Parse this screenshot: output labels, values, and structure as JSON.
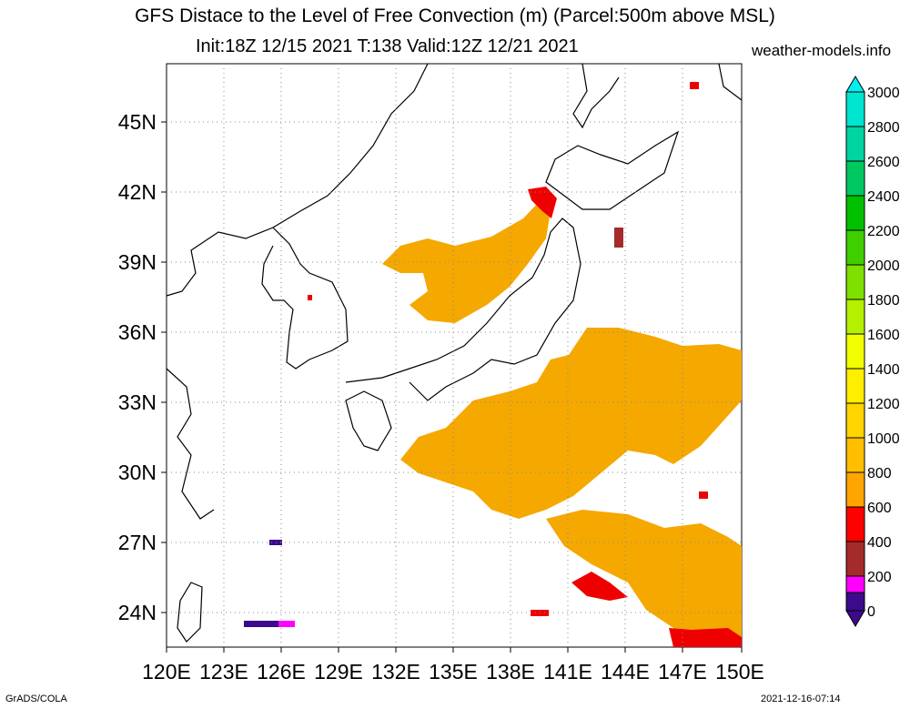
{
  "title": {
    "line1": "GFS Distace to the Level of Free Convection (m) (Parcel:500m above MSL)",
    "line2": "Init:18Z 12/15 2021 T:138 Valid:12Z 12/21 2021",
    "site": "weather-models.info"
  },
  "footer": {
    "left": "GrADS/COLA",
    "right": "2021-12-16-07:14"
  },
  "map": {
    "lon_range": [
      120,
      150
    ],
    "lat_range": [
      22.5,
      47.5
    ],
    "lat_ticks": [
      {
        "lat": 45,
        "label": "45N"
      },
      {
        "lat": 42,
        "label": "42N"
      },
      {
        "lat": 39,
        "label": "39N"
      },
      {
        "lat": 36,
        "label": "36N"
      },
      {
        "lat": 33,
        "label": "33N"
      },
      {
        "lat": 30,
        "label": "30N"
      },
      {
        "lat": 27,
        "label": "27N"
      },
      {
        "lat": 24,
        "label": "24N"
      }
    ],
    "lon_ticks": [
      {
        "lon": 120,
        "label": "120E"
      },
      {
        "lon": 123,
        "label": "123E"
      },
      {
        "lon": 126,
        "label": "126E"
      },
      {
        "lon": 129,
        "label": "129E"
      },
      {
        "lon": 132,
        "label": "132E"
      },
      {
        "lon": 135,
        "label": "135E"
      },
      {
        "lon": 138,
        "label": "138E"
      },
      {
        "lon": 141,
        "label": "141E"
      },
      {
        "lon": 144,
        "label": "144E"
      },
      {
        "lon": 147,
        "label": "147E"
      },
      {
        "lon": 150,
        "label": "150E"
      }
    ],
    "grid": true
  },
  "colorbar": {
    "labels": [
      "0",
      "200",
      "400",
      "600",
      "800",
      "1000",
      "1200",
      "1400",
      "1600",
      "1800",
      "2000",
      "2200",
      "2400",
      "2600",
      "2800",
      "3000"
    ],
    "colors": [
      "#3c0a8c",
      "#ff00ff",
      "#a52a2a",
      "#ff0000",
      "#ffa500",
      "#ffbf00",
      "#ffd400",
      "#ffee00",
      "#f2ff00",
      "#b4f000",
      "#7fe000",
      "#3fcf00",
      "#00c000",
      "#00c860",
      "#00d4a0",
      "#00e5d0",
      "#00f0f0"
    ]
  }
}
